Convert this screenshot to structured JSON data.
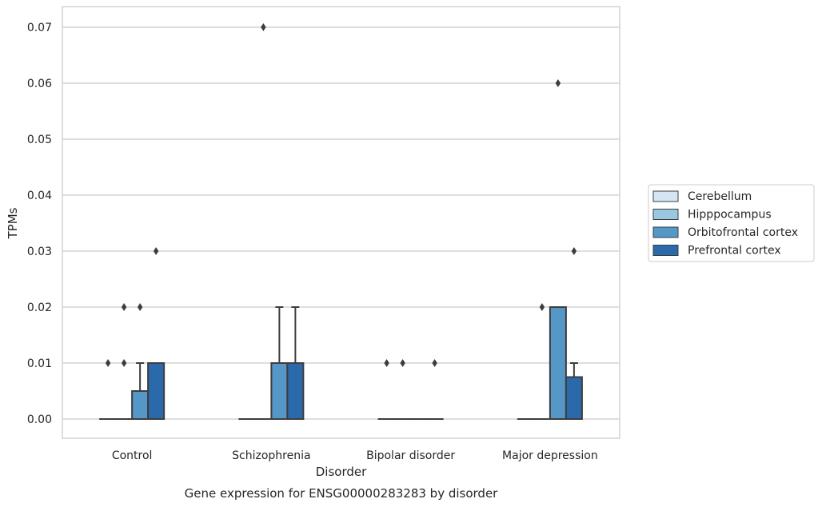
{
  "chart_data": {
    "type": "box",
    "title": "Gene expression for ENSG00000283283 by disorder",
    "xlabel": "Disorder",
    "ylabel": "TPMs",
    "ylim": [
      -0.0034,
      0.0736
    ],
    "yticks": [
      0.0,
      0.01,
      0.02,
      0.03,
      0.04,
      0.05,
      0.06,
      0.07
    ],
    "ytick_labels": [
      "0.00",
      "0.01",
      "0.02",
      "0.03",
      "0.04",
      "0.05",
      "0.06",
      "0.07"
    ],
    "categories": [
      "Control",
      "Schizophrenia",
      "Bipolar disorder",
      "Major depression"
    ],
    "grid": "horizontal",
    "legend_position": "right",
    "series": [
      {
        "name": "Cerebellum",
        "color": "#d6e5f4",
        "boxes": [
          {
            "q1": 0,
            "median": 0,
            "q3": 0,
            "whisker_low": 0,
            "whisker_high": 0,
            "outliers": [
              0.01
            ]
          },
          {
            "q1": 0,
            "median": 0,
            "q3": 0,
            "whisker_low": 0,
            "whisker_high": 0,
            "outliers": []
          },
          {
            "q1": 0,
            "median": 0,
            "q3": 0,
            "whisker_low": 0,
            "whisker_high": 0,
            "outliers": [
              0.01
            ]
          },
          {
            "q1": 0,
            "median": 0,
            "q3": 0,
            "whisker_low": 0,
            "whisker_high": 0,
            "outliers": []
          }
        ]
      },
      {
        "name": "Hipppocampus",
        "color": "#9ac8e0",
        "boxes": [
          {
            "q1": 0,
            "median": 0,
            "q3": 0,
            "whisker_low": 0,
            "whisker_high": 0,
            "outliers": [
              0.01,
              0.02
            ]
          },
          {
            "q1": 0,
            "median": 0,
            "q3": 0,
            "whisker_low": 0,
            "whisker_high": 0,
            "outliers": [
              0.07
            ]
          },
          {
            "q1": 0,
            "median": 0,
            "q3": 0,
            "whisker_low": 0,
            "whisker_high": 0,
            "outliers": [
              0.01
            ]
          },
          {
            "q1": 0,
            "median": 0,
            "q3": 0,
            "whisker_low": 0,
            "whisker_high": 0,
            "outliers": [
              0.02
            ]
          }
        ]
      },
      {
        "name": "Orbitofrontal cortex",
        "color": "#5597c6",
        "boxes": [
          {
            "q1": 0,
            "median": 0,
            "q3": 0.005,
            "whisker_low": 0,
            "whisker_high": 0.01,
            "outliers": [
              0.02
            ]
          },
          {
            "q1": 0,
            "median": 0,
            "q3": 0.01,
            "whisker_low": 0,
            "whisker_high": 0.02,
            "outliers": []
          },
          {
            "q1": 0,
            "median": 0,
            "q3": 0,
            "whisker_low": 0,
            "whisker_high": 0,
            "outliers": []
          },
          {
            "q1": 0,
            "median": 0,
            "q3": 0.02,
            "whisker_low": 0,
            "whisker_high": 0.02,
            "outliers": [
              0.06
            ]
          }
        ]
      },
      {
        "name": "Prefrontal cortex",
        "color": "#2a6aaa",
        "boxes": [
          {
            "q1": 0,
            "median": 0,
            "q3": 0.01,
            "whisker_low": 0,
            "whisker_high": 0.01,
            "outliers": [
              0.03
            ]
          },
          {
            "q1": 0,
            "median": 0,
            "q3": 0.01,
            "whisker_low": 0,
            "whisker_high": 0.02,
            "outliers": []
          },
          {
            "q1": 0,
            "median": 0,
            "q3": 0,
            "whisker_low": 0,
            "whisker_high": 0,
            "outliers": [
              0.01
            ]
          },
          {
            "q1": 0,
            "median": 0,
            "q3": 0.0075,
            "whisker_low": 0,
            "whisker_high": 0.01,
            "outliers": [
              0.03
            ]
          }
        ]
      }
    ]
  }
}
